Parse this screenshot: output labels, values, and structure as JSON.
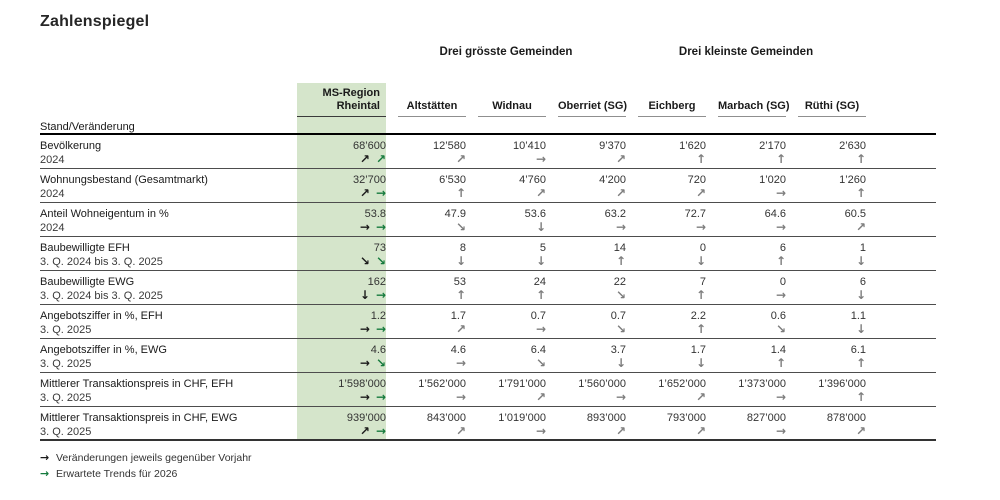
{
  "title": "Zahlenspiegel",
  "table": {
    "corner_label": "Stand/Veränderung",
    "groups": [
      {
        "label": "Drei grösste Gemeinden"
      },
      {
        "label": "Drei kleinste Gemeinden"
      }
    ],
    "ms_column": {
      "line1": "MS-Region",
      "line2": "Rheintal"
    },
    "columns": [
      "Altstätten",
      "Widnau",
      "Oberriet (SG)",
      "Eichberg",
      "Marbach (SG)",
      "Rüthi (SG)"
    ],
    "rows": [
      {
        "label": "Bevölkerung",
        "period": "2024",
        "ms_value": "68’600",
        "ms_change": "↗",
        "ms_trend": "↗",
        "values": [
          "12’580",
          "10’410",
          "9’370",
          "1’620",
          "2’170",
          "2’630"
        ],
        "arrows": [
          "↗",
          "→",
          "↗",
          "↑",
          "↑",
          "↑"
        ]
      },
      {
        "label": "Wohnungsbestand (Gesamtmarkt)",
        "period": "2024",
        "ms_value": "32’700",
        "ms_change": "↗",
        "ms_trend": "→",
        "values": [
          "6’530",
          "4’760",
          "4’200",
          "720",
          "1’020",
          "1’260"
        ],
        "arrows": [
          "↑",
          "↗",
          "↗",
          "↗",
          "→",
          "↑"
        ]
      },
      {
        "label": "Anteil Wohneigentum in %",
        "period": "2024",
        "ms_value": "53.8",
        "ms_change": "→",
        "ms_trend": "→",
        "values": [
          "47.9",
          "53.6",
          "63.2",
          "72.7",
          "64.6",
          "60.5"
        ],
        "arrows": [
          "↘",
          "↓",
          "→",
          "→",
          "→",
          "↗"
        ]
      },
      {
        "label": "Baubewilligte EFH",
        "period": "3. Q. 2024 bis 3. Q. 2025",
        "ms_value": "73",
        "ms_change": "↘",
        "ms_trend": "↘",
        "values": [
          "8",
          "5",
          "14",
          "0",
          "6",
          "1"
        ],
        "arrows": [
          "↓",
          "↓",
          "↑",
          "↓",
          "↑",
          "↓"
        ]
      },
      {
        "label": "Baubewilligte EWG",
        "period": "3. Q. 2024 bis 3. Q. 2025",
        "ms_value": "162",
        "ms_change": "↓",
        "ms_trend": "→",
        "values": [
          "53",
          "24",
          "22",
          "7",
          "0",
          "6"
        ],
        "arrows": [
          "↑",
          "↑",
          "↘",
          "↑",
          "→",
          "↓"
        ]
      },
      {
        "label": "Angebotsziffer in %, EFH",
        "period": "3. Q. 2025",
        "ms_value": "1.2",
        "ms_change": "→",
        "ms_trend": "→",
        "values": [
          "1.7",
          "0.7",
          "0.7",
          "2.2",
          "0.6",
          "1.1"
        ],
        "arrows": [
          "↗",
          "→",
          "↘",
          "↑",
          "↘",
          "↓"
        ]
      },
      {
        "label": "Angebotsziffer in %, EWG",
        "period": "3. Q. 2025",
        "ms_value": "4.6",
        "ms_change": "→",
        "ms_trend": "↘",
        "values": [
          "4.6",
          "6.4",
          "3.7",
          "1.7",
          "1.4",
          "6.1"
        ],
        "arrows": [
          "→",
          "↘",
          "↓",
          "↓",
          "↑",
          "↑"
        ]
      },
      {
        "label": "Mittlerer Transaktionspreis in CHF, EFH",
        "period": "3. Q. 2025",
        "ms_value": "1’598’000",
        "ms_change": "→",
        "ms_trend": "→",
        "values": [
          "1’562’000",
          "1’791’000",
          "1’560’000",
          "1’652’000",
          "1’373’000",
          "1’396’000"
        ],
        "arrows": [
          "→",
          "↗",
          "→",
          "↗",
          "→",
          "↑"
        ]
      },
      {
        "label": "Mittlerer Transaktionspreis in CHF, EWG",
        "period": "3. Q. 2025",
        "ms_value": "939’000",
        "ms_change": "↗",
        "ms_trend": "→",
        "values": [
          "843’000",
          "1’019’000",
          "893’000",
          "793’000",
          "827’000",
          "878’000"
        ],
        "arrows": [
          "↗",
          "→",
          "↗",
          "↗",
          "→",
          "↗"
        ]
      }
    ]
  },
  "legend": [
    {
      "arrow": "→",
      "label": "Veränderungen jeweils gegenüber Vorjahr"
    },
    {
      "arrow": "→",
      "label": "Erwartete Trends für 2026"
    }
  ],
  "colors": {
    "highlight_column_bg": "#d5e5cb",
    "trend_green": "#157a3d",
    "change_black": "#1a1a1a",
    "municipality_arrow_gray": "#7d7d7d"
  }
}
